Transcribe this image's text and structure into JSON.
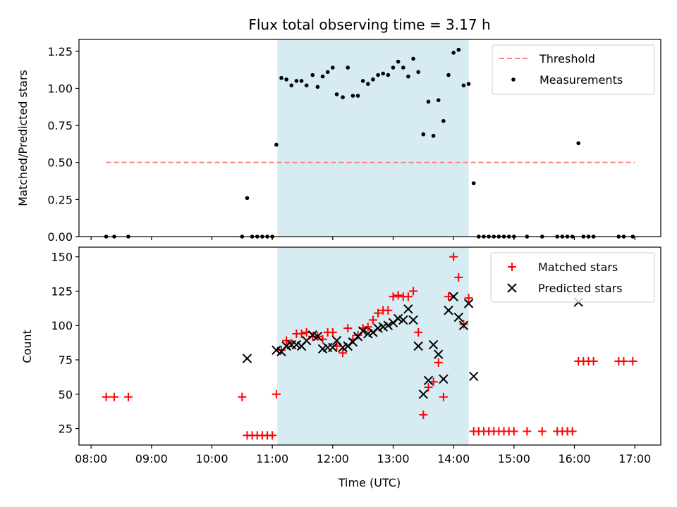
{
  "title": "Flux total observing time = 3.17 h",
  "x_tick_labels": [
    "08:00",
    "09:00",
    "10:00",
    "11:00",
    "12:00",
    "13:00",
    "14:00",
    "15:00",
    "16:00",
    "17:00"
  ],
  "x_label": "Time (UTC)",
  "colors": {
    "shade": "#add8e6",
    "threshold": "#ff7f7f",
    "measurement": "#000000",
    "matched": "#ff0000",
    "predicted": "#000000"
  },
  "chart_data": [
    {
      "type": "scatter",
      "panel": "top",
      "ylabel": "Matched/Predicted stars",
      "ylim": [
        0,
        1.33
      ],
      "yticks": [
        "0.00",
        "0.25",
        "0.50",
        "0.75",
        "1.00",
        "1.25"
      ],
      "xrange_hours": [
        7.8,
        17.43
      ],
      "shaded_interval": [
        "11:05",
        "14:15"
      ],
      "legend": {
        "position": "upper right",
        "entries": [
          "Threshold",
          "Measurements"
        ]
      },
      "threshold": {
        "name": "Threshold",
        "value": 0.5,
        "x_start": "08:15",
        "x_end": "17:00",
        "style": "dashed"
      },
      "series": [
        {
          "name": "Measurements",
          "marker": "dot",
          "points": [
            [
              "08:15",
              0
            ],
            [
              "08:23",
              0
            ],
            [
              "08:37",
              0
            ],
            [
              "10:30",
              0
            ],
            [
              "10:35",
              0.26
            ],
            [
              "10:40",
              0
            ],
            [
              "10:45",
              0
            ],
            [
              "10:50",
              0
            ],
            [
              "10:55",
              0
            ],
            [
              "11:00",
              0
            ],
            [
              "11:04",
              0.62
            ],
            [
              "11:09",
              1.07
            ],
            [
              "11:14",
              1.06
            ],
            [
              "11:19",
              1.02
            ],
            [
              "11:24",
              1.05
            ],
            [
              "11:29",
              1.05
            ],
            [
              "11:34",
              1.02
            ],
            [
              "11:40",
              1.09
            ],
            [
              "11:45",
              1.01
            ],
            [
              "11:50",
              1.08
            ],
            [
              "11:55",
              1.11
            ],
            [
              "12:00",
              1.14
            ],
            [
              "12:04",
              0.96
            ],
            [
              "12:10",
              0.94
            ],
            [
              "12:15",
              1.14
            ],
            [
              "12:20",
              0.95
            ],
            [
              "12:25",
              0.95
            ],
            [
              "12:30",
              1.05
            ],
            [
              "12:35",
              1.03
            ],
            [
              "12:40",
              1.06
            ],
            [
              "12:45",
              1.09
            ],
            [
              "12:50",
              1.1
            ],
            [
              "12:55",
              1.09
            ],
            [
              "13:00",
              1.14
            ],
            [
              "13:05",
              1.18
            ],
            [
              "13:10",
              1.14
            ],
            [
              "13:15",
              1.08
            ],
            [
              "13:20",
              1.2
            ],
            [
              "13:25",
              1.11
            ],
            [
              "13:30",
              0.69
            ],
            [
              "13:35",
              0.91
            ],
            [
              "13:40",
              0.68
            ],
            [
              "13:45",
              0.92
            ],
            [
              "13:50",
              0.78
            ],
            [
              "13:55",
              1.09
            ],
            [
              "14:00",
              1.24
            ],
            [
              "14:05",
              1.26
            ],
            [
              "14:10",
              1.02
            ],
            [
              "14:15",
              1.03
            ],
            [
              "14:20",
              0.36
            ],
            [
              "14:25",
              0
            ],
            [
              "14:30",
              0
            ],
            [
              "14:35",
              0
            ],
            [
              "14:40",
              0
            ],
            [
              "14:45",
              0
            ],
            [
              "14:50",
              0
            ],
            [
              "14:55",
              0
            ],
            [
              "15:00",
              0
            ],
            [
              "15:13",
              0
            ],
            [
              "15:28",
              0
            ],
            [
              "15:43",
              0
            ],
            [
              "15:48",
              0
            ],
            [
              "15:53",
              0
            ],
            [
              "15:58",
              0
            ],
            [
              "16:04",
              0.63
            ],
            [
              "16:09",
              0
            ],
            [
              "16:14",
              0
            ],
            [
              "16:19",
              0
            ],
            [
              "16:44",
              0
            ],
            [
              "16:49",
              0
            ],
            [
              "16:58",
              0
            ]
          ]
        }
      ]
    },
    {
      "type": "scatter",
      "panel": "bottom",
      "ylabel": "Count",
      "ylim": [
        13,
        157
      ],
      "yticks": [
        "25",
        "50",
        "75",
        "100",
        "125",
        "150"
      ],
      "xrange_hours": [
        7.8,
        17.43
      ],
      "shaded_interval": [
        "11:05",
        "14:15"
      ],
      "legend": {
        "position": "upper right",
        "entries": [
          "Matched stars",
          "Predicted stars"
        ]
      },
      "series": [
        {
          "name": "Matched stars",
          "marker": "plus",
          "points": [
            [
              "08:15",
              48
            ],
            [
              "08:23",
              48
            ],
            [
              "08:37",
              48
            ],
            [
              "10:30",
              48
            ],
            [
              "10:35",
              20
            ],
            [
              "10:40",
              20
            ],
            [
              "10:45",
              20
            ],
            [
              "10:50",
              20
            ],
            [
              "10:55",
              20
            ],
            [
              "11:00",
              20
            ],
            [
              "11:04",
              50
            ],
            [
              "11:09",
              82
            ],
            [
              "11:14",
              89
            ],
            [
              "11:19",
              87
            ],
            [
              "11:24",
              94
            ],
            [
              "11:29",
              94
            ],
            [
              "11:34",
              95
            ],
            [
              "11:40",
              92
            ],
            [
              "11:45",
              92
            ],
            [
              "11:50",
              90
            ],
            [
              "11:55",
              95
            ],
            [
              "12:00",
              95
            ],
            [
              "12:04",
              85
            ],
            [
              "12:10",
              80
            ],
            [
              "12:15",
              98
            ],
            [
              "12:20",
              90
            ],
            [
              "12:25",
              93
            ],
            [
              "12:30",
              98
            ],
            [
              "12:35",
              99
            ],
            [
              "12:40",
              104
            ],
            [
              "12:45",
              109
            ],
            [
              "12:50",
              111
            ],
            [
              "12:55",
              111
            ],
            [
              "13:00",
              121
            ],
            [
              "13:05",
              122
            ],
            [
              "13:10",
              121
            ],
            [
              "13:15",
              121
            ],
            [
              "13:20",
              125
            ],
            [
              "13:25",
              95
            ],
            [
              "13:30",
              35
            ],
            [
              "13:35",
              55
            ],
            [
              "13:40",
              59
            ],
            [
              "13:45",
              73
            ],
            [
              "13:50",
              48
            ],
            [
              "13:55",
              121
            ],
            [
              "14:00",
              150
            ],
            [
              "14:05",
              135
            ],
            [
              "14:10",
              101
            ],
            [
              "14:15",
              120
            ],
            [
              "14:20",
              23
            ],
            [
              "14:25",
              23
            ],
            [
              "14:30",
              23
            ],
            [
              "14:35",
              23
            ],
            [
              "14:40",
              23
            ],
            [
              "14:45",
              23
            ],
            [
              "14:50",
              23
            ],
            [
              "14:55",
              23
            ],
            [
              "15:00",
              23
            ],
            [
              "15:13",
              23
            ],
            [
              "15:28",
              23
            ],
            [
              "15:43",
              23
            ],
            [
              "15:48",
              23
            ],
            [
              "15:53",
              23
            ],
            [
              "15:58",
              23
            ],
            [
              "16:04",
              74
            ],
            [
              "16:09",
              74
            ],
            [
              "16:14",
              74
            ],
            [
              "16:19",
              74
            ],
            [
              "16:44",
              74
            ],
            [
              "16:49",
              74
            ],
            [
              "16:58",
              74
            ]
          ]
        },
        {
          "name": "Predicted stars",
          "marker": "x",
          "points": [
            [
              "10:35",
              76
            ],
            [
              "11:04",
              82
            ],
            [
              "11:09",
              81
            ],
            [
              "11:14",
              85
            ],
            [
              "11:19",
              86
            ],
            [
              "11:24",
              86
            ],
            [
              "11:29",
              85
            ],
            [
              "11:34",
              89
            ],
            [
              "11:40",
              93
            ],
            [
              "11:45",
              92
            ],
            [
              "11:50",
              83
            ],
            [
              "11:55",
              84
            ],
            [
              "12:00",
              84
            ],
            [
              "12:04",
              89
            ],
            [
              "12:10",
              84
            ],
            [
              "12:15",
              85
            ],
            [
              "12:20",
              88
            ],
            [
              "12:25",
              92
            ],
            [
              "12:30",
              96
            ],
            [
              "12:35",
              94
            ],
            [
              "12:40",
              95
            ],
            [
              "12:45",
              98
            ],
            [
              "12:50",
              99
            ],
            [
              "12:55",
              100
            ],
            [
              "13:00",
              102
            ],
            [
              "13:05",
              105
            ],
            [
              "13:10",
              104
            ],
            [
              "13:15",
              112
            ],
            [
              "13:20",
              104
            ],
            [
              "13:25",
              85
            ],
            [
              "13:30",
              50
            ],
            [
              "13:35",
              60
            ],
            [
              "13:40",
              86
            ],
            [
              "13:45",
              79
            ],
            [
              "13:50",
              61
            ],
            [
              "13:55",
              111
            ],
            [
              "14:00",
              121
            ],
            [
              "14:05",
              106
            ],
            [
              "14:10",
              100
            ],
            [
              "14:15",
              116
            ],
            [
              "14:20",
              63
            ],
            [
              "16:04",
              117
            ]
          ]
        }
      ]
    }
  ]
}
